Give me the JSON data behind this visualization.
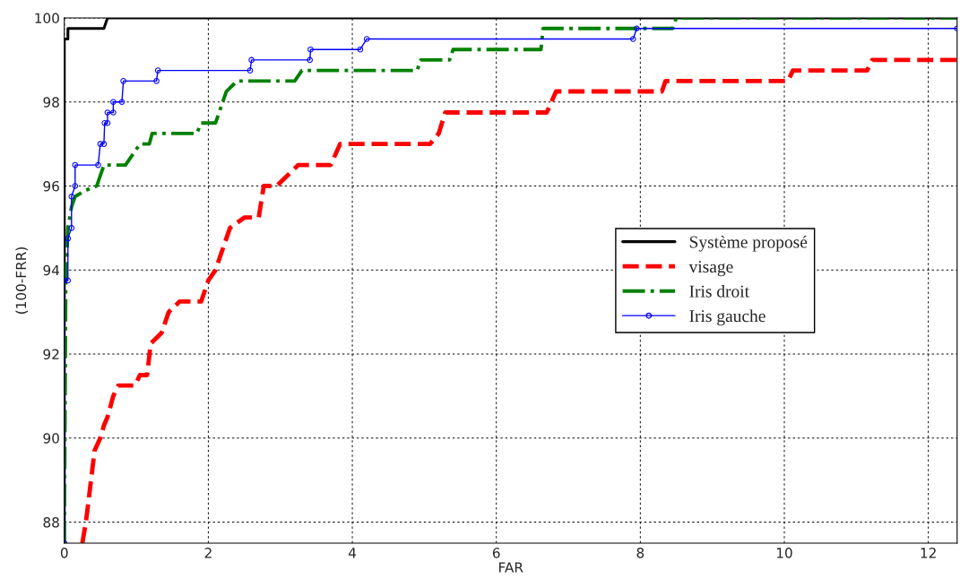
{
  "chart_data": {
    "type": "line",
    "xlabel": "FAR",
    "ylabel": "(100-FRR)",
    "xlim": [
      0,
      12.4
    ],
    "ylim": [
      87.5,
      100
    ],
    "xticks": [
      0,
      2,
      4,
      6,
      8,
      10,
      12
    ],
    "yticks": [
      88,
      90,
      92,
      94,
      96,
      98,
      100
    ],
    "grid": true,
    "legend": "center right",
    "series": [
      {
        "name": "Système proposé",
        "color": "#000000",
        "line_style": "solid",
        "marker": "none",
        "x": [
          0,
          0,
          0.05,
          0.05,
          0.55,
          0.6,
          12.4
        ],
        "values": [
          87.5,
          99.5,
          99.5,
          99.75,
          99.75,
          100,
          100
        ]
      },
      {
        "name": "visage",
        "color": "#ff0000",
        "line_style": "dashed",
        "marker": "none",
        "x": [
          0.25,
          0.3,
          0.35,
          0.42,
          0.5,
          0.55,
          0.6,
          0.68,
          0.75,
          0.98,
          1.05,
          1.15,
          1.2,
          1.35,
          1.45,
          1.6,
          1.9,
          2.0,
          2.1,
          2.2,
          2.3,
          2.5,
          2.7,
          2.77,
          2.95,
          3.1,
          3.25,
          3.7,
          3.83,
          5.08,
          5.2,
          5.29,
          6.7,
          6.83,
          8.3,
          8.35,
          10.05,
          10.12,
          11.15,
          11.22,
          12.4
        ],
        "values": [
          87.5,
          88.0,
          88.7,
          89.7,
          90.0,
          90.3,
          90.5,
          91.0,
          91.25,
          91.25,
          91.5,
          91.5,
          92.25,
          92.5,
          93.0,
          93.25,
          93.25,
          93.75,
          94.0,
          94.5,
          95.0,
          95.25,
          95.25,
          96.0,
          96.0,
          96.25,
          96.5,
          96.5,
          97.0,
          97.0,
          97.25,
          97.75,
          97.75,
          98.25,
          98.25,
          98.5,
          98.5,
          98.75,
          98.75,
          99.0,
          99.0
        ]
      },
      {
        "name": "Iris droit",
        "color": "#008000",
        "line_style": "dashdot",
        "marker": "none",
        "x": [
          0,
          0.02,
          0.05,
          0.1,
          0.15,
          0.3,
          0.45,
          0.5,
          0.55,
          0.85,
          0.95,
          1.05,
          1.18,
          1.22,
          1.84,
          1.9,
          2.1,
          2.15,
          2.25,
          2.4,
          3.2,
          3.3,
          4.9,
          4.95,
          5.35,
          5.4,
          6.62,
          6.65,
          8.45,
          8.5,
          12.4
        ],
        "values": [
          87.5,
          93.8,
          95.0,
          95.5,
          95.75,
          95.9,
          96.0,
          96.25,
          96.5,
          96.5,
          96.75,
          97.0,
          97.0,
          97.25,
          97.25,
          97.5,
          97.5,
          97.75,
          98.25,
          98.5,
          98.5,
          98.75,
          98.75,
          99.0,
          99.0,
          99.25,
          99.25,
          99.75,
          99.75,
          100,
          100
        ]
      },
      {
        "name": "Iris gauche",
        "color": "#0000ff",
        "line_style": "solid",
        "marker": "circle",
        "x": [
          0,
          0,
          0.05,
          0.05,
          0.1,
          0.1,
          0.15,
          0.15,
          0.47,
          0.5,
          0.55,
          0.56,
          0.6,
          0.6,
          0.68,
          0.68,
          0.8,
          0.82,
          1.28,
          1.3,
          2.58,
          2.6,
          3.41,
          3.42,
          4.11,
          4.2,
          7.9,
          7.95,
          12.4
        ],
        "values": [
          87.5,
          93.75,
          93.75,
          94.75,
          95.0,
          95.75,
          96.0,
          96.5,
          96.5,
          97.0,
          97.0,
          97.5,
          97.5,
          97.75,
          97.75,
          98.0,
          98.0,
          98.5,
          98.5,
          98.75,
          98.75,
          99.0,
          99.0,
          99.25,
          99.25,
          99.5,
          99.5,
          99.75,
          99.75
        ]
      }
    ]
  }
}
